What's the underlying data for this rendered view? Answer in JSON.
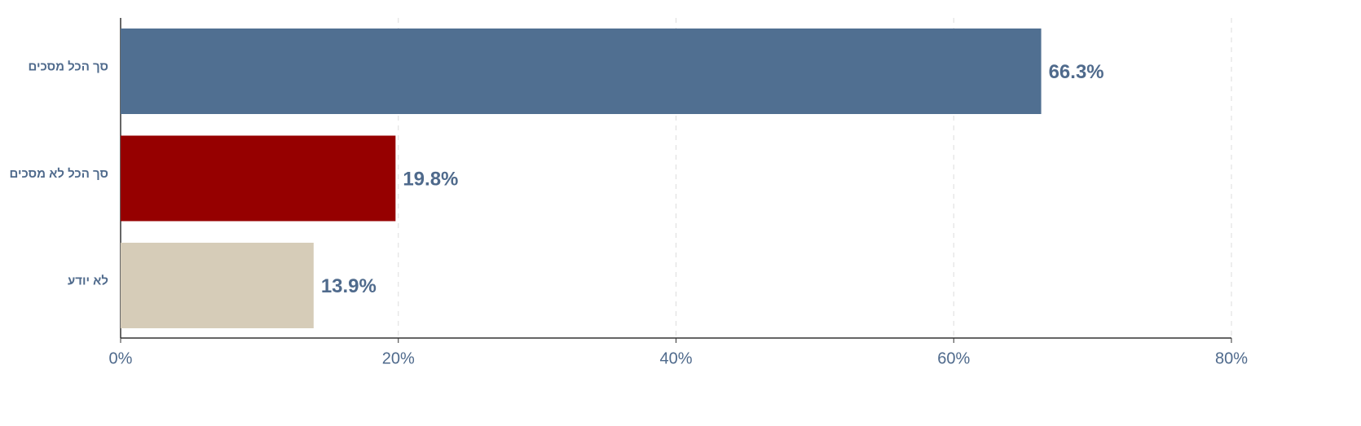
{
  "chart_data": {
    "type": "hbar",
    "categories": [
      "סך הכל מסכים",
      "סך הכל לא מסכים",
      "לא יודע"
    ],
    "values": [
      66.3,
      19.8,
      13.9
    ],
    "value_labels": [
      "66.3%",
      "19.8%",
      "13.9%"
    ],
    "colors": [
      "#506f91",
      "#960000",
      "#d6ccb8"
    ],
    "xlim": [
      0,
      80
    ],
    "xticks": [
      {
        "value": 0,
        "label": "0%"
      },
      {
        "value": 20,
        "label": "20%"
      },
      {
        "value": 40,
        "label": "40%"
      },
      {
        "value": 60,
        "label": "60%"
      },
      {
        "value": 80,
        "label": "80%"
      }
    ],
    "grid": true
  }
}
